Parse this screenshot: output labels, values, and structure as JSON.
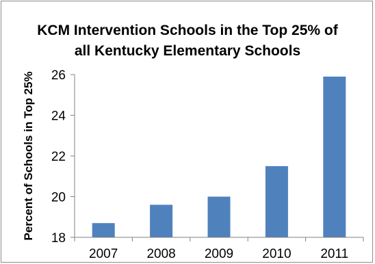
{
  "chart_data": {
    "type": "bar",
    "title_lines": [
      "KCM Intervention Schools in the Top 25% of",
      "all Kentucky Elementary Schools"
    ],
    "xlabel": "",
    "ylabel": "Percent of Schools in Top 25%",
    "categories": [
      "2007",
      "2008",
      "2009",
      "2010",
      "2011"
    ],
    "values": [
      18.7,
      19.6,
      20.0,
      21.5,
      25.9
    ],
    "ylim": [
      18,
      26
    ],
    "yticks": [
      18,
      20,
      22,
      24,
      26
    ],
    "grid": false,
    "legend": "none",
    "bar_color": "#4f81bd"
  }
}
